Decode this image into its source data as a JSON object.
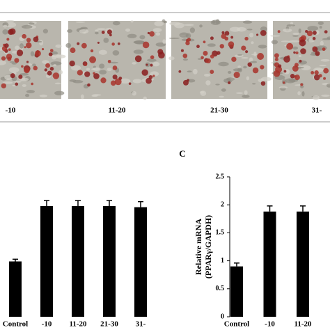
{
  "images": {
    "labels": [
      "-10",
      "11-20",
      "21-30",
      "31-"
    ]
  },
  "chart_data": [
    {
      "type": "bar",
      "categories": [
        "Control",
        "-10",
        "11-20",
        "21-30",
        "31-"
      ],
      "values": [
        0.5,
        1.0,
        1.0,
        1.0,
        0.99
      ],
      "errors": [
        0.02,
        0.05,
        0.05,
        0.05,
        0.05
      ],
      "ylim": [
        0,
        1
      ],
      "color": "#000000"
    },
    {
      "type": "bar",
      "panel_label": "C",
      "y_label": [
        "Relative mRNA",
        "(PPARγ/GAPDH)"
      ],
      "categories": [
        "Control",
        "-10",
        "11-20"
      ],
      "values": [
        0.9,
        1.88,
        1.88
      ],
      "errors": [
        0.06,
        0.1,
        0.1
      ],
      "ylim": [
        0,
        2.5
      ],
      "yticks": [
        0,
        0.5,
        1,
        1.5,
        2,
        2.5
      ],
      "color": "#000000"
    }
  ]
}
